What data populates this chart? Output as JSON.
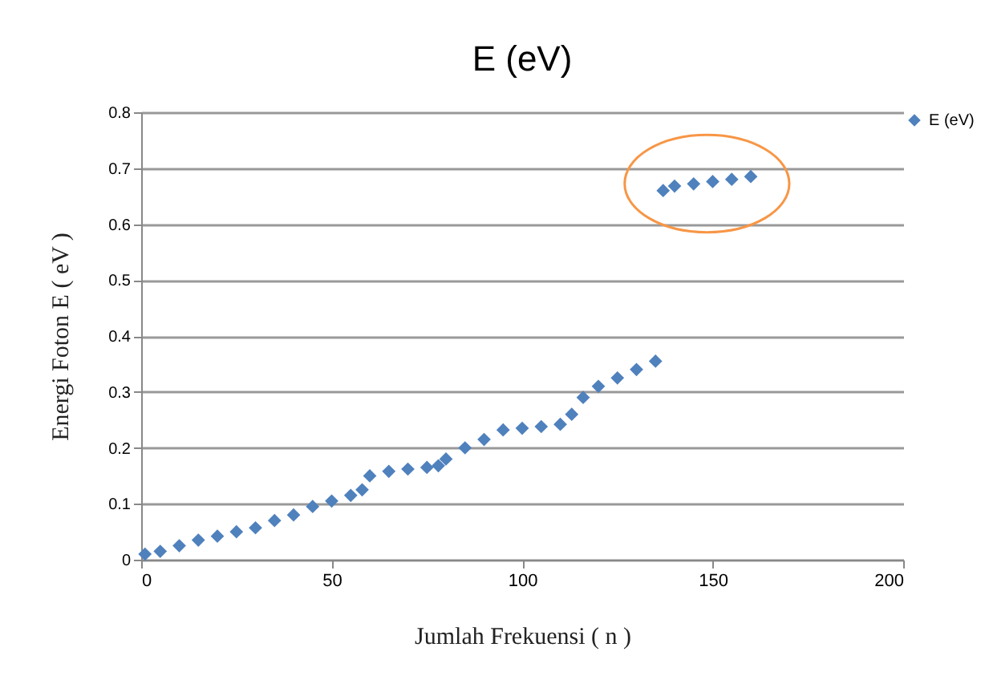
{
  "chart_data": {
    "type": "scatter",
    "title": "E (eV)",
    "xlabel": "Jumlah Frekuensi ( n )",
    "ylabel": "Energi Foton E ( eV )",
    "xlim": [
      0,
      200
    ],
    "xticks": [
      0,
      50,
      100,
      150,
      200
    ],
    "ylim": [
      0,
      0.8
    ],
    "yticks": [
      0,
      0.1,
      0.2,
      0.3,
      0.4,
      0.5,
      0.6,
      0.7,
      0.8
    ],
    "grid": "y",
    "legend": "right",
    "marker": "diamond",
    "series": [
      {
        "name": "E (eV)",
        "color": "#4f81bd",
        "x": [
          1,
          5,
          10,
          15,
          20,
          25,
          30,
          35,
          40,
          45,
          50,
          55,
          58,
          60,
          65,
          70,
          75,
          78,
          80,
          85,
          90,
          95,
          100,
          105,
          110,
          113,
          116,
          120,
          125,
          130,
          135
        ],
        "values": [
          0.01,
          0.015,
          0.025,
          0.035,
          0.042,
          0.05,
          0.057,
          0.07,
          0.08,
          0.095,
          0.105,
          0.115,
          0.125,
          0.15,
          0.158,
          0.162,
          0.165,
          0.168,
          0.18,
          0.2,
          0.215,
          0.232,
          0.235,
          0.238,
          0.242,
          0.26,
          0.29,
          0.31,
          0.325,
          0.34,
          0.355
        ]
      },
      {
        "color": "#4f81bd",
        "x": [
          137,
          140,
          145,
          150,
          155,
          160
        ],
        "values": [
          0.66,
          0.668,
          0.672,
          0.676,
          0.68,
          0.685
        ]
      }
    ]
  }
}
